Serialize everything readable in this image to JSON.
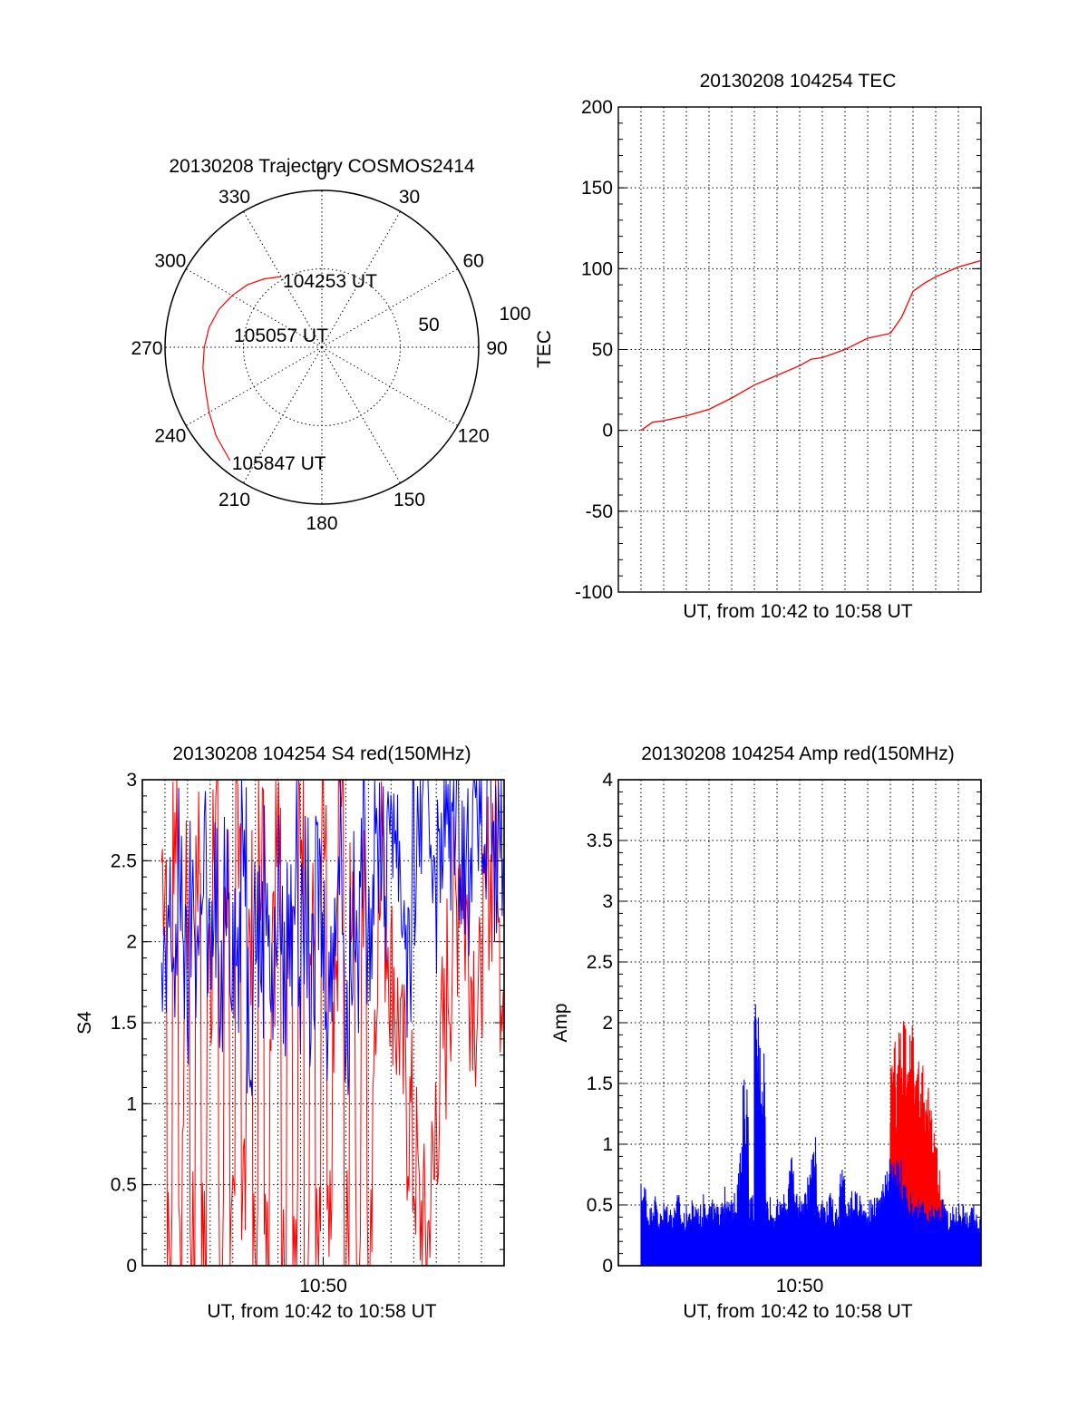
{
  "colors": {
    "red": "#ff0000",
    "blue": "#0000ff",
    "axis": "#000000"
  },
  "chart_data": [
    {
      "id": "polar",
      "type": "scatter",
      "subtype": "polar-trajectory",
      "title": "20130208 Trajectory COSMOS2414",
      "azimuth_labels": [
        "0",
        "30",
        "60",
        "90",
        "120",
        "150",
        "180",
        "210",
        "240",
        "270",
        "300",
        "330"
      ],
      "azimuth_angles": [
        0,
        30,
        60,
        90,
        120,
        150,
        180,
        210,
        240,
        270,
        300,
        330
      ],
      "radial_labels": [
        "50",
        "100"
      ],
      "radial_values": [
        50,
        100
      ],
      "r_max": 100,
      "points": [
        {
          "az": 330,
          "r": 52
        },
        {
          "az": 320,
          "r": 57
        },
        {
          "az": 310,
          "r": 62
        },
        {
          "az": 300,
          "r": 66
        },
        {
          "az": 290,
          "r": 70
        },
        {
          "az": 280,
          "r": 73
        },
        {
          "az": 270,
          "r": 75
        },
        {
          "az": 260,
          "r": 77
        },
        {
          "az": 250,
          "r": 79
        },
        {
          "az": 240,
          "r": 83
        },
        {
          "az": 230,
          "r": 88
        },
        {
          "az": 219,
          "r": 93
        }
      ],
      "annotations": [
        {
          "text": "104253 UT",
          "at": "start"
        },
        {
          "text": "105057 UT",
          "at": "middle"
        },
        {
          "text": "105847 UT",
          "at": "end"
        }
      ],
      "series_color": "#ff0000"
    },
    {
      "id": "tec",
      "type": "line",
      "title": "20130208 104254 TEC",
      "xlabel": "UT, from 10:42 to 10:58 UT",
      "ylabel": "TEC",
      "ylim": [
        -100,
        200
      ],
      "xlim": [
        0,
        16
      ],
      "x_unit": "minutes after 10:42",
      "yticks": [
        "200",
        "150",
        "100",
        "50",
        "0",
        "-50",
        "-100"
      ],
      "ytick_values": [
        200,
        150,
        100,
        50,
        0,
        -50,
        -100
      ],
      "x": [
        1,
        1.5,
        2,
        3,
        4,
        5,
        6,
        7,
        8,
        8.5,
        9,
        10,
        11,
        12,
        12.5,
        13,
        13.5,
        14,
        15,
        16
      ],
      "series": [
        {
          "color": "#ff0000",
          "values": [
            0,
            5,
            6,
            9,
            13,
            20,
            28,
            34,
            40,
            44,
            45,
            50,
            57,
            60,
            70,
            86,
            91,
            95,
            101,
            105
          ]
        }
      ]
    },
    {
      "id": "s4",
      "type": "line",
      "title": "20130208 104254 S4 red(150MHz)",
      "xlabel": "UT, from 10:42 to 10:58 UT",
      "ylabel": "S4",
      "ylim": [
        0,
        3
      ],
      "xlim": [
        0,
        16
      ],
      "x_unit": "minutes after 10:42",
      "xticks": [
        "10:50"
      ],
      "xtick_values": [
        8
      ],
      "yticks": [
        "3",
        "2.5",
        "2",
        "1.5",
        "1",
        "0.5",
        "0"
      ],
      "ytick_values": [
        3,
        2.5,
        2,
        1.5,
        1,
        0.5,
        0
      ],
      "series": [
        {
          "color": "#ff0000",
          "values": [
            2.5,
            0,
            2.8,
            0.3,
            2.2,
            0,
            2.6,
            0,
            1.8,
            3,
            0,
            2.4,
            0,
            2.9,
            0.5,
            2.1,
            0,
            2.7,
            0,
            1.9,
            3,
            0,
            2.3,
            0,
            2.8,
            0.2,
            2,
            0,
            2.6,
            0,
            1.7,
            2.9,
            0,
            2.4,
            0,
            2.2,
            0,
            1.6,
            2.7,
            2.1,
            1.8,
            1.5,
            1.2,
            0.9,
            0.6,
            0.3,
            0.2,
            0.5,
            1,
            1.4,
            1.8,
            2.2,
            2.5,
            2.1,
            1.8,
            1.6,
            2,
            2.4,
            2.7,
            1.9
          ]
        },
        {
          "color": "#0000ff",
          "values": [
            1.6,
            2.1,
            1.9,
            2.4,
            1.7,
            2.2,
            2,
            2.6,
            1.8,
            2.3,
            1.5,
            2.5,
            2.1,
            1.9,
            2.7,
            1.6,
            2.2,
            2,
            2.4,
            1.7,
            2.3,
            1.8,
            2.1,
            2.5,
            1.9,
            2.2,
            1.6,
            2.4,
            2,
            1.7,
            2.3,
            2.6,
            1.5,
            2.1,
            1.9,
            2.8,
            2.2,
            2.5,
            2.7,
            2.4,
            2.9,
            2.6,
            2.2,
            1.9,
            2.5,
            2.8,
            3,
            2.7,
            2.4,
            2.9,
            2.6,
            3,
            2.7,
            2.5,
            2.8,
            3,
            2.6,
            2.9,
            2.4,
            2.7
          ]
        }
      ]
    },
    {
      "id": "amp",
      "type": "line",
      "title": "20130208 104254 Amp red(150MHz)",
      "xlabel": "UT, from 10:42 to 10:58 UT",
      "ylabel": "Amp",
      "ylim": [
        0,
        4
      ],
      "xlim": [
        0,
        16
      ],
      "x_unit": "minutes after 10:42",
      "xticks": [
        "10:50"
      ],
      "xtick_values": [
        8
      ],
      "yticks": [
        "4",
        "3.5",
        "3",
        "2.5",
        "2",
        "1.5",
        "1",
        "0.5",
        "0"
      ],
      "ytick_values": [
        4,
        3.5,
        3,
        2.5,
        2,
        1.5,
        1,
        0.5,
        0
      ],
      "series": [
        {
          "color": "#ff0000",
          "x_start": 12,
          "x_end": 14.3,
          "values": [
            1.7,
            1.9,
            1.6,
            2.0,
            1.8,
            2.1,
            1.7,
            1.9,
            2.0,
            1.6,
            1.8,
            1.5,
            1.7,
            1.4,
            1.6,
            1.3,
            1.2,
            1.0,
            0.8,
            0.6
          ]
        },
        {
          "color": "#0000ff",
          "x_start": 1,
          "x_end": 16,
          "values": [
            0.7,
            0.5,
            0.6,
            0.45,
            0.55,
            0.5,
            0.6,
            0.45,
            0.5,
            0.55,
            0.5,
            0.6,
            0.55,
            0.5,
            0.65,
            0.55,
            0.6,
            1.0,
            1.55,
            0.6,
            2.2,
            1.9,
            0.6,
            0.5,
            0.55,
            0.6,
            0.9,
            0.65,
            0.6,
            0.75,
            1.15,
            0.6,
            0.55,
            0.6,
            0.5,
            0.8,
            0.55,
            0.65,
            0.6,
            0.5,
            0.55,
            0.6,
            0.7,
            0.95,
            0.85,
            0.9,
            0.7,
            0.6,
            0.5,
            0.55,
            0.45,
            0.5,
            0.5,
            0.55,
            0.45,
            0.5,
            0.55,
            0.45,
            0.5,
            0.45
          ]
        }
      ]
    }
  ]
}
